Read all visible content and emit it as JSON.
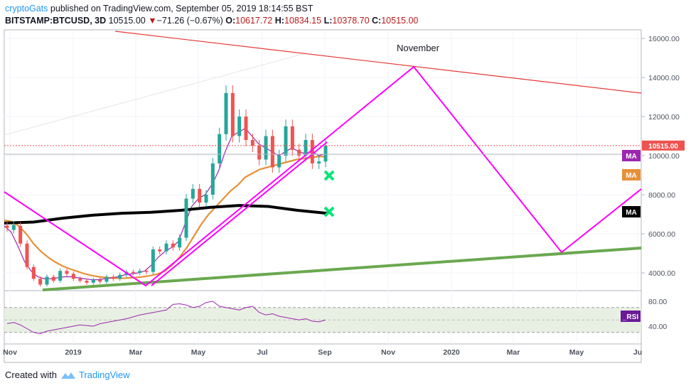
{
  "header": {
    "author": "cryptoGats",
    "published": " published on TradingView.com, September 05, 2019 18:14:55 BST",
    "symbol": "BITSTAMP:BTCUSD, 3D",
    "last": "10515.00",
    "change_arrow": "▼",
    "change": "−71.26 (−0.67%)",
    "o_label": "O:",
    "o": "10617.72",
    "h_label": "H:",
    "h": "10834.15",
    "l_label": "L:",
    "l": "10378.70",
    "c_label": "C:",
    "c": "10515.00"
  },
  "footer": {
    "created_with": "Created with",
    "brand": "TradingView"
  },
  "colors": {
    "up": "#26a69a",
    "down": "#ef5350",
    "magenta": "#ff00ff",
    "red_line": "#e53935",
    "green_line": "#6aa84f",
    "ma_orange": "#e69138",
    "ma_black": "#000000",
    "ma_purple": "#9c27b0",
    "x_marker": "#00e676",
    "rsi_band": "#e8f0e3"
  },
  "chart_data": {
    "type": "line",
    "title": "",
    "x_axis": [
      "Nov",
      "2019",
      "Mar",
      "May",
      "Jul",
      "Sep",
      "Nov",
      "2020",
      "Mar",
      "May",
      "Ju"
    ],
    "y_axis": {
      "ticks": [
        "16000.00",
        "14000.00",
        "12000.00",
        "10000.00",
        "8000.00",
        "6000.00",
        "4000.00"
      ],
      "ylim": [
        3000,
        16500
      ]
    },
    "last_price_label": "10515.00",
    "annotation": "November",
    "rsi": {
      "ticks": [
        "80.00",
        "40.00"
      ],
      "band": [
        30,
        70
      ],
      "label": "_RSI"
    },
    "legend_tags": [
      "MA",
      "MA",
      "MA"
    ],
    "candles": [
      [
        6420,
        6300
      ],
      [
        6200,
        6450
      ],
      [
        6400,
        5500
      ],
      [
        5500,
        4300
      ],
      [
        4300,
        3700
      ],
      [
        3700,
        3400
      ],
      [
        3400,
        3800
      ],
      [
        3800,
        3600
      ],
      [
        3600,
        4100
      ],
      [
        4100,
        3950
      ],
      [
        3950,
        3700
      ],
      [
        3700,
        3600
      ],
      [
        3600,
        3500
      ],
      [
        3500,
        3650
      ],
      [
        3650,
        3550
      ],
      [
        3550,
        3800
      ],
      [
        3800,
        3700
      ],
      [
        3700,
        3900
      ],
      [
        3900,
        4050
      ],
      [
        4050,
        4000
      ],
      [
        4000,
        4100
      ],
      [
        4100,
        4050
      ],
      [
        4050,
        5200
      ],
      [
        5200,
        5100
      ],
      [
        5100,
        5500
      ],
      [
        5500,
        5300
      ],
      [
        5300,
        5800
      ],
      [
        5800,
        7800
      ],
      [
        7800,
        8300
      ],
      [
        8300,
        7600
      ],
      [
        7600,
        8000
      ],
      [
        8000,
        9600
      ],
      [
        9600,
        11100
      ],
      [
        11100,
        13200
      ],
      [
        13200,
        11000
      ],
      [
        11000,
        12000
      ],
      [
        12000,
        10800
      ],
      [
        10800,
        10500
      ],
      [
        10500,
        9800
      ],
      [
        9800,
        11000
      ],
      [
        11000,
        9400
      ],
      [
        9400,
        10000
      ],
      [
        10000,
        11500
      ],
      [
        11500,
        10300
      ],
      [
        10300,
        10000
      ],
      [
        10000,
        10800
      ],
      [
        10800,
        9600
      ],
      [
        9600,
        9700
      ],
      [
        9700,
        10500
      ]
    ],
    "ma_fast": [
      6400,
      6100,
      5400,
      4600,
      4100,
      3800,
      3700,
      3700,
      3750,
      3800,
      3800,
      3750,
      3700,
      3650,
      3650,
      3700,
      3750,
      3800,
      3900,
      3950,
      4000,
      4100,
      4400,
      4800,
      5100,
      5300,
      5600,
      6500,
      7400,
      7800,
      8000,
      8500,
      9200,
      10200,
      11000,
      11200,
      11400,
      11000,
      10600,
      10400,
      10200,
      10000,
      10200,
      10400,
      10200,
      10100,
      10200,
      10000,
      10100
    ],
    "ma_slow": [
      6700,
      6620,
      6400,
      6000,
      5500,
      5100,
      4800,
      4550,
      4350,
      4200,
      4080,
      3950,
      3860,
      3800,
      3760,
      3730,
      3720,
      3740,
      3760,
      3800,
      3860,
      3940,
      4100,
      4400,
      4800,
      5300,
      5900,
      6500,
      7000,
      7400,
      7800,
      8200,
      8500,
      8900,
      9100,
      9300,
      9400,
      9500,
      9600,
      9700,
      9800,
      9850,
      9900,
      9950,
      9950
    ],
    "ma_200": [
      6550,
      6600,
      6800,
      6950,
      7050,
      7100,
      7200,
      7350,
      7450,
      7400,
      7200,
      7050
    ],
    "trendlines": [
      {
        "name": "resistance",
        "from": [
          "Aug 2018",
          16300
        ],
        "to": [
          "Jul 2020",
          13100
        ]
      },
      {
        "name": "support",
        "from": [
          "Dec 2018",
          3200
        ],
        "to": [
          "Jul 2020",
          5300
        ]
      },
      {
        "name": "projection",
        "points": [
          [
            "Sep 2018",
            8200
          ],
          [
            "Mar 2019",
            3300
          ],
          [
            "Dec 2019",
            14500
          ],
          [
            "Apr 2020",
            4900
          ],
          [
            "Jul 2020",
            8300
          ]
        ]
      }
    ]
  }
}
